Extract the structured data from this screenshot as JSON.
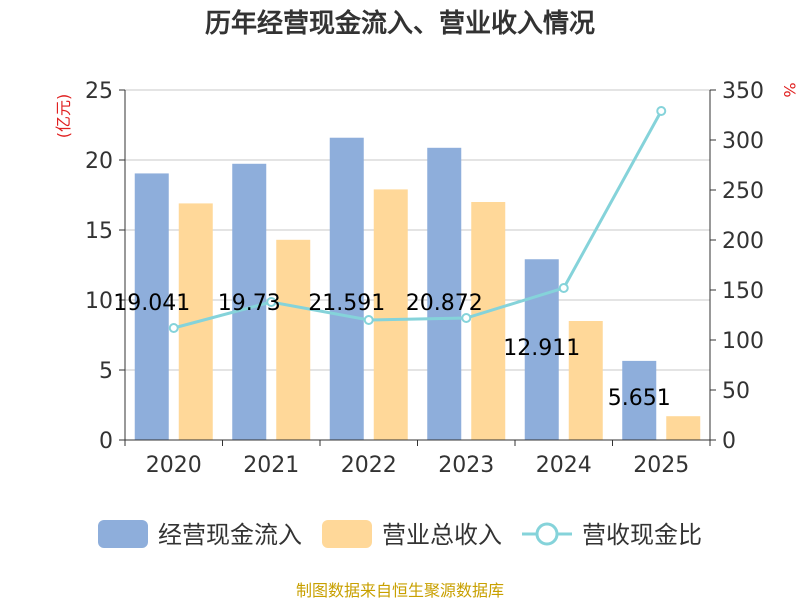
{
  "title": "历年经营现金流入、营业收入情况",
  "footer": "制图数据来自恒生聚源数据库",
  "chart_data": {
    "type": "bar",
    "categories": [
      "2020",
      "2021",
      "2022",
      "2023",
      "2024",
      "2025"
    ],
    "series": [
      {
        "name": "经营现金流入",
        "type": "bar",
        "axis": "left",
        "color": "#8eaedb",
        "values": [
          19.041,
          19.73,
          21.591,
          20.872,
          12.911,
          5.651
        ],
        "labels": [
          "19.041",
          "19.73",
          "21.591",
          "20.872",
          "12.911",
          "5.651"
        ]
      },
      {
        "name": "营业总收入",
        "type": "bar",
        "axis": "left",
        "color": "#ffd899",
        "values": [
          16.9,
          14.3,
          17.9,
          17.0,
          8.5,
          1.7
        ]
      },
      {
        "name": "营收现金比",
        "type": "line",
        "axis": "right",
        "color": "#85d3da",
        "values": [
          112,
          138,
          120,
          122,
          152,
          329
        ]
      }
    ],
    "y_left": {
      "unit": "(亿元)",
      "min": 0,
      "max": 25,
      "ticks": [
        0,
        5,
        10,
        15,
        20,
        25
      ]
    },
    "y_right": {
      "unit": "%",
      "min": 0,
      "max": 350,
      "ticks": [
        0,
        50,
        100,
        150,
        200,
        250,
        300,
        350
      ]
    },
    "grid": true,
    "legend_position": "bottom"
  }
}
